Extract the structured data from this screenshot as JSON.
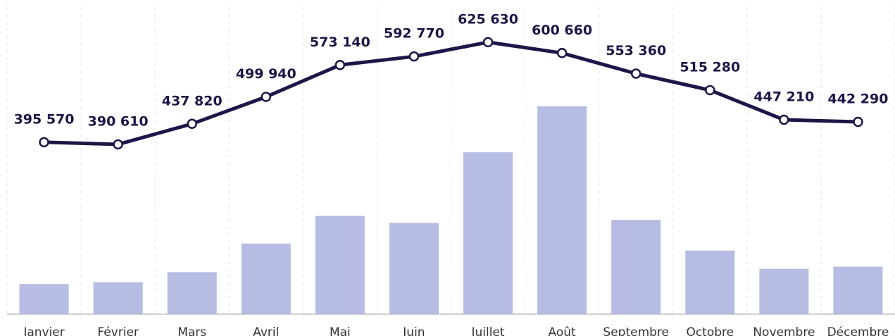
{
  "chart_data": {
    "type": "bar-line",
    "categories": [
      "Janvier",
      "Février",
      "Mars",
      "Avril",
      "Mai",
      "Juin",
      "Juillet",
      "Août",
      "Septembre",
      "Octobre",
      "Novembre",
      "Décembre"
    ],
    "ylim": [
      0,
      700000
    ],
    "y2lim": [
      0,
      100
    ],
    "series": [
      {
        "type": "bar",
        "axis": "y2",
        "color": "#b6bce3",
        "values": [
          9.9,
          10.5,
          13.8,
          23.2,
          32.3,
          30.0,
          53.2,
          68.3,
          31.0,
          20.9,
          14.9,
          15.6
        ]
      },
      {
        "type": "line",
        "color": "#1c1748",
        "values": [
          395570,
          390610,
          437820,
          499940,
          573140,
          592770,
          625630,
          600660,
          553360,
          515280,
          447210,
          442290
        ],
        "value_labels": [
          "395 570",
          "390 610",
          "437 820",
          "499 940",
          "573 140",
          "592 770",
          "625 630",
          "600 660",
          "553 360",
          "515 280",
          "447 210",
          "442 290"
        ]
      }
    ]
  }
}
